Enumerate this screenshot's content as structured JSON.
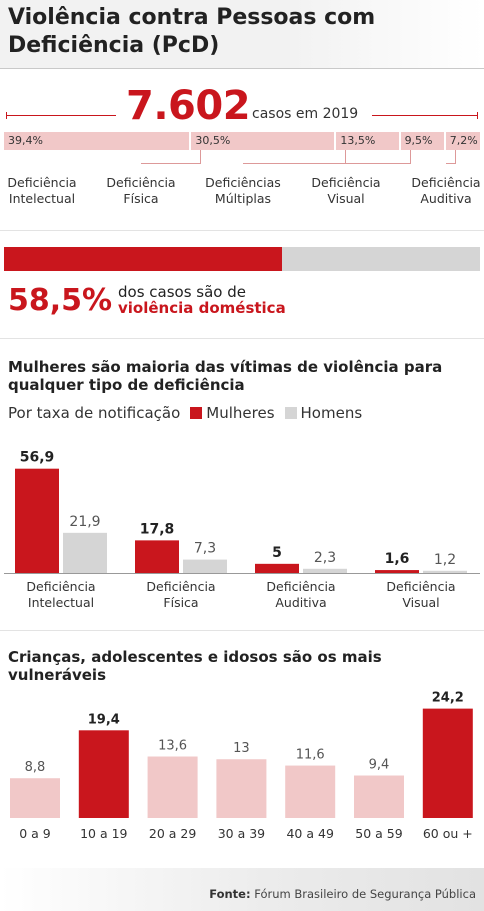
{
  "title": "Violência contra Pessoas com Deficiência (PcD)",
  "total_cases": {
    "value": "7.602",
    "label": "casos em 2019"
  },
  "colors": {
    "accent": "#c9161d",
    "light": "#f1c8c8",
    "grey": "#d5d5d5"
  },
  "distribution": [
    {
      "pct": "39,4%",
      "value": 39.4,
      "label_lines": [
        "Deficiência",
        "Intelectual"
      ]
    },
    {
      "pct": "30,5%",
      "value": 30.5,
      "label_lines": [
        "Deficiência",
        "Física"
      ]
    },
    {
      "pct": "13,5%",
      "value": 13.5,
      "label_lines": [
        "Deficiências",
        "Múltiplas"
      ]
    },
    {
      "pct": "9,5%",
      "value": 9.5,
      "label_lines": [
        "Deficiência",
        "Visual"
      ]
    },
    {
      "pct": "7,2%",
      "value": 7.2,
      "label_lines": [
        "Deficiência",
        "Auditiva"
      ]
    }
  ],
  "domestic": {
    "value": 58.5,
    "pct_text": "58,5%",
    "text_line1": "dos casos são de",
    "text_line2": "violência doméstica"
  },
  "gender_chart": {
    "title": "Mulheres são maioria das vítimas de violência para qualquer tipo de deficiência",
    "legend_prefix": "Por taxa de notificação",
    "legend_women": "Mulheres",
    "legend_men": "Homens"
  },
  "age_chart": {
    "title": "Crianças, adolescentes e idosos são os mais vulneráveis"
  },
  "chart_data": [
    {
      "type": "bar",
      "title": "Mulheres são maioria das vítimas de violência para qualquer tipo de deficiência",
      "subtitle": "Por taxa de notificação",
      "categories": [
        "Deficiência Intelectual",
        "Deficiência Física",
        "Deficiência Auditiva",
        "Deficiência Visual"
      ],
      "category_lines": [
        [
          "Deficiência",
          "Intelectual"
        ],
        [
          "Deficiência",
          "Física"
        ],
        [
          "Deficiência",
          "Auditiva"
        ],
        [
          "Deficiência",
          "Visual"
        ]
      ],
      "series": [
        {
          "name": "Mulheres",
          "color": "#c9161d",
          "values": [
            56.9,
            17.8,
            5,
            1.6
          ],
          "labels": [
            "56,9",
            "17,8",
            "5",
            "1,6"
          ]
        },
        {
          "name": "Homens",
          "color": "#d5d5d5",
          "values": [
            21.9,
            7.3,
            2.3,
            1.2
          ],
          "labels": [
            "21,9",
            "7,3",
            "2,3",
            "1,2"
          ]
        }
      ],
      "ylim": [
        0,
        60
      ],
      "legend": "top-left",
      "grid": false
    },
    {
      "type": "bar",
      "title": "Crianças, adolescentes e idosos são os mais vulneráveis",
      "categories": [
        "0 a 9",
        "10 a 19",
        "20 a 29",
        "30 a 39",
        "40 a 49",
        "50 a 59",
        "60 ou +"
      ],
      "values": [
        8.8,
        19.4,
        13.6,
        13,
        11.6,
        9.4,
        24.2
      ],
      "labels": [
        "8,8",
        "19,4",
        "13,6",
        "13",
        "11,6",
        "9,4",
        "24,2"
      ],
      "highlight": [
        false,
        true,
        false,
        false,
        false,
        false,
        true
      ],
      "ylim": [
        0,
        25
      ],
      "grid": false
    }
  ],
  "footer": {
    "source_label": "Fonte:",
    "source_text": "Fórum Brasileiro de Segurança Pública"
  }
}
